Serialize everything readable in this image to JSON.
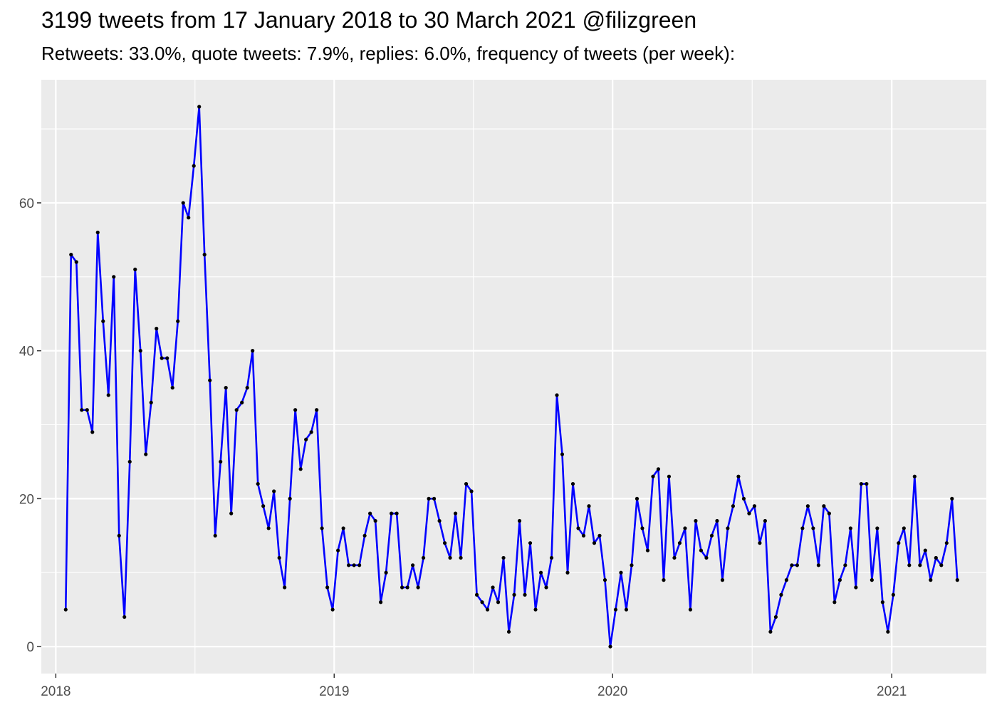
{
  "title": "3199 tweets from 17 January 2018 to 30 March 2021 @filizgreen",
  "subtitle": "Retweets: 33.0%, quote tweets: 7.9%, replies: 6.0%, frequency of tweets (per week):",
  "colors": {
    "line": "#0000ff",
    "point": "#000000",
    "panel": "#ebebeb",
    "grid": "#ffffff"
  },
  "chart_data": {
    "type": "line",
    "x_label_ticks": [
      "2018",
      "2019",
      "2020",
      "2021"
    ],
    "y_label_ticks": [
      "0",
      "20",
      "40",
      "60"
    ],
    "xlim": [
      "2017-12-13",
      "2021-05-05"
    ],
    "ylim": [
      -3.65,
      76.65
    ],
    "grid": true,
    "legend": "none",
    "series": [
      {
        "x": [
          "2018-01-14",
          "2018-01-21",
          "2018-01-28",
          "2018-02-04",
          "2018-02-11",
          "2018-02-18",
          "2018-02-25",
          "2018-03-04",
          "2018-03-11",
          "2018-03-18",
          "2018-03-25",
          "2018-04-01",
          "2018-04-08",
          "2018-04-15",
          "2018-04-22",
          "2018-04-29",
          "2018-05-06",
          "2018-05-13",
          "2018-05-20",
          "2018-05-27",
          "2018-06-03",
          "2018-06-10",
          "2018-06-17",
          "2018-06-24",
          "2018-07-01",
          "2018-07-08",
          "2018-07-15",
          "2018-07-22",
          "2018-07-29",
          "2018-08-05",
          "2018-08-12",
          "2018-08-19",
          "2018-08-26",
          "2018-09-02",
          "2018-09-09",
          "2018-09-16",
          "2018-09-23",
          "2018-09-30",
          "2018-10-07",
          "2018-10-14",
          "2018-10-21",
          "2018-10-28",
          "2018-11-04",
          "2018-11-11",
          "2018-11-18",
          "2018-11-25",
          "2018-12-02",
          "2018-12-09",
          "2018-12-16",
          "2018-12-23",
          "2018-12-30",
          "2019-01-06",
          "2019-01-13",
          "2019-01-20",
          "2019-01-27",
          "2019-02-03",
          "2019-02-10",
          "2019-02-17",
          "2019-02-24",
          "2019-03-03",
          "2019-03-10",
          "2019-03-17",
          "2019-03-24",
          "2019-03-31",
          "2019-04-07",
          "2019-04-14",
          "2019-04-21",
          "2019-04-28",
          "2019-05-05",
          "2019-05-12",
          "2019-05-19",
          "2019-05-26",
          "2019-06-02",
          "2019-06-09",
          "2019-06-16",
          "2019-06-23",
          "2019-06-30",
          "2019-07-07",
          "2019-07-14",
          "2019-07-21",
          "2019-07-28",
          "2019-08-04",
          "2019-08-11",
          "2019-08-18",
          "2019-08-25",
          "2019-09-01",
          "2019-09-08",
          "2019-09-15",
          "2019-09-22",
          "2019-09-29",
          "2019-10-06",
          "2019-10-13",
          "2019-10-20",
          "2019-10-27",
          "2019-11-03",
          "2019-11-10",
          "2019-11-17",
          "2019-11-24",
          "2019-12-01",
          "2019-12-08",
          "2019-12-15",
          "2019-12-22",
          "2019-12-29",
          "2020-01-05",
          "2020-01-12",
          "2020-01-19",
          "2020-01-26",
          "2020-02-02",
          "2020-02-09",
          "2020-02-16",
          "2020-02-23",
          "2020-03-01",
          "2020-03-08",
          "2020-03-15",
          "2020-03-22",
          "2020-03-29",
          "2020-04-05",
          "2020-04-12",
          "2020-04-19",
          "2020-04-26",
          "2020-05-03",
          "2020-05-10",
          "2020-05-17",
          "2020-05-24",
          "2020-05-31",
          "2020-06-07",
          "2020-06-14",
          "2020-06-21",
          "2020-06-28",
          "2020-07-05",
          "2020-07-12",
          "2020-07-19",
          "2020-07-26",
          "2020-08-02",
          "2020-08-09",
          "2020-08-16",
          "2020-08-23",
          "2020-08-30",
          "2020-09-06",
          "2020-09-13",
          "2020-09-20",
          "2020-09-27",
          "2020-10-04",
          "2020-10-11",
          "2020-10-18",
          "2020-10-25",
          "2020-11-01",
          "2020-11-08",
          "2020-11-15",
          "2020-11-22",
          "2020-11-29",
          "2020-12-06",
          "2020-12-13",
          "2020-12-20",
          "2020-12-27",
          "2021-01-03",
          "2021-01-10",
          "2021-01-17",
          "2021-01-24",
          "2021-01-31",
          "2021-02-07",
          "2021-02-14",
          "2021-02-21",
          "2021-02-28",
          "2021-03-07",
          "2021-03-14",
          "2021-03-21",
          "2021-03-28"
        ],
        "values": [
          5,
          53,
          52,
          32,
          32,
          29,
          56,
          44,
          34,
          50,
          15,
          4,
          25,
          51,
          40,
          26,
          33,
          43,
          39,
          39,
          35,
          44,
          60,
          58,
          65,
          73,
          53,
          36,
          15,
          25,
          35,
          18,
          32,
          33,
          35,
          40,
          22,
          19,
          16,
          21,
          12,
          8,
          20,
          32,
          24,
          28,
          29,
          32,
          16,
          8,
          5,
          13,
          16,
          11,
          11,
          11,
          15,
          18,
          17,
          6,
          10,
          18,
          18,
          8,
          8,
          11,
          8,
          12,
          20,
          20,
          17,
          14,
          12,
          18,
          12,
          22,
          21,
          7,
          6,
          5,
          8,
          6,
          12,
          2,
          7,
          17,
          7,
          14,
          5,
          10,
          8,
          12,
          34,
          26,
          10,
          22,
          16,
          15,
          19,
          14,
          15,
          9,
          0,
          5,
          10,
          5,
          11,
          20,
          16,
          13,
          23,
          24,
          9,
          23,
          12,
          14,
          16,
          5,
          17,
          13,
          12,
          15,
          17,
          9,
          16,
          19,
          23,
          20,
          18,
          19,
          14,
          17,
          2,
          4,
          7,
          9,
          11,
          11,
          16,
          19,
          16,
          11,
          19,
          18,
          6,
          9,
          11,
          16,
          8,
          22,
          22,
          9,
          16,
          6,
          2,
          7,
          14,
          16,
          11,
          23,
          11,
          13,
          9,
          12,
          11,
          14,
          20,
          9
        ]
      }
    ]
  }
}
